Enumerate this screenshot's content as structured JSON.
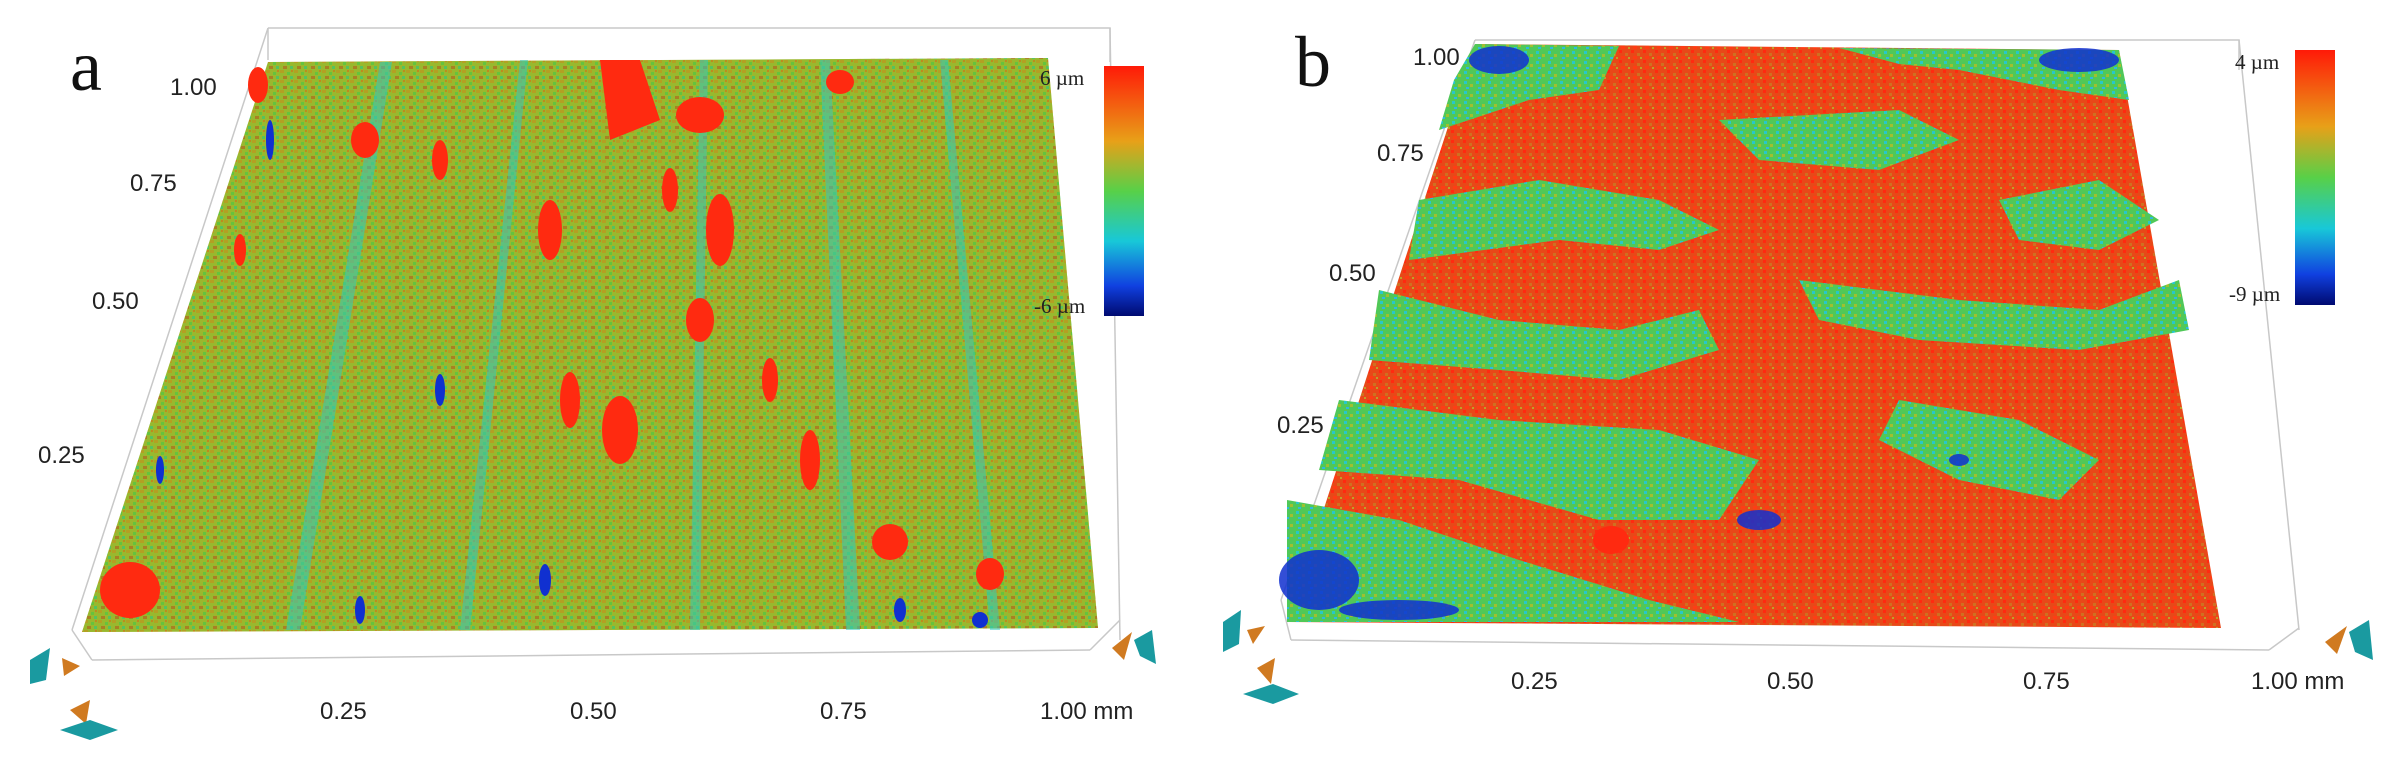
{
  "panels": [
    {
      "letter": "a",
      "y_ticks": [
        "1.00",
        "0.75",
        "0.50",
        "0.25"
      ],
      "x_ticks": [
        "0.25",
        "0.50",
        "0.75",
        "1.00 mm"
      ],
      "colorbar": {
        "max_label": "6 µm",
        "min_label": "-6 µm"
      }
    },
    {
      "letter": "b",
      "y_ticks": [
        "1.00",
        "0.75",
        "0.50",
        "0.25"
      ],
      "x_ticks": [
        "0.25",
        "0.50",
        "0.75",
        "1.00 mm"
      ],
      "colorbar": {
        "max_label": "4 µm",
        "min_label": "-9 µm"
      }
    }
  ],
  "colors": {
    "high": "#ff2a10",
    "mid_high": "#d9a020",
    "mid": "#7fd030",
    "mid_low": "#20c8d0",
    "low": "#0010a0",
    "nav_teal": "#1a9aa0",
    "nav_orange": "#d07a20"
  }
}
